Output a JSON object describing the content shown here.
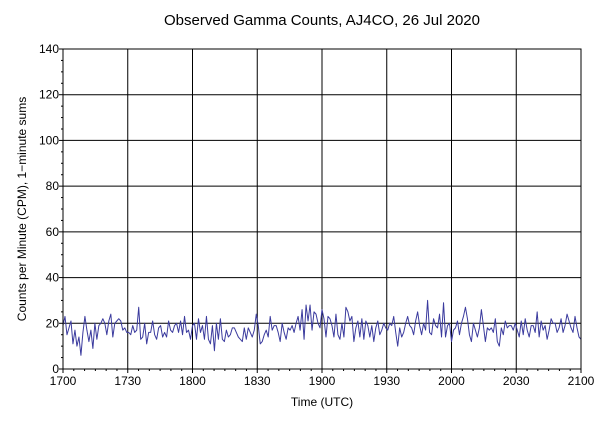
{
  "chart_data": {
    "type": "line",
    "title": "Observed Gamma Counts, AJ4CO, 26 Jul 2020",
    "xlabel": "Time (UTC)",
    "ylabel": "Counts per Minute (CPM), 1−minute sums",
    "x_ticks": [
      "1700",
      "1730",
      "1800",
      "1830",
      "1900",
      "1930",
      "2000",
      "2030",
      "2100"
    ],
    "y_ticks": [
      0,
      20,
      40,
      60,
      80,
      100,
      120,
      140
    ],
    "ylim": [
      0,
      140
    ],
    "x_start": "17:00",
    "x_end": "21:00",
    "grid": true,
    "series": [
      {
        "color": "#3b3b9e",
        "x_unit": "minutes after 17:00 UTC",
        "values": [
          19,
          23,
          15,
          18,
          21,
          11,
          17,
          10,
          14,
          6,
          16,
          23,
          17,
          12,
          17,
          9,
          20,
          13,
          19,
          20,
          22,
          20,
          15,
          21,
          24,
          14,
          20,
          21,
          22,
          21,
          17,
          18,
          16,
          16,
          15,
          19,
          16,
          17,
          27,
          13,
          14,
          20,
          11,
          16,
          16,
          21,
          15,
          13,
          18,
          19,
          14,
          16,
          14,
          21,
          17,
          16,
          19,
          20,
          16,
          21,
          15,
          23,
          16,
          17,
          13,
          19,
          20,
          13,
          22,
          16,
          19,
          13,
          23,
          13,
          11,
          19,
          8,
          20,
          13,
          22,
          13,
          12,
          17,
          14,
          15,
          18,
          18,
          16,
          14,
          13,
          12,
          18,
          13,
          18,
          16,
          14,
          17,
          24,
          19,
          11,
          12,
          15,
          17,
          14,
          23,
          17,
          19,
          19,
          16,
          12,
          20,
          16,
          13,
          18,
          17,
          19,
          16,
          20,
          23,
          17,
          26,
          13,
          28,
          21,
          28,
          17,
          25,
          24,
          20,
          18,
          26,
          22,
          14,
          23,
          22,
          19,
          14,
          24,
          15,
          13,
          20,
          14,
          27,
          25,
          21,
          23,
          12,
          18,
          21,
          14,
          22,
          13,
          21,
          19,
          14,
          19,
          12,
          18,
          21,
          15,
          17,
          20,
          18,
          17,
          20,
          19,
          23,
          16,
          10,
          18,
          14,
          16,
          20,
          23,
          19,
          18,
          15,
          21,
          25,
          19,
          15,
          20,
          17,
          30,
          16,
          15,
          22,
          19,
          18,
          24,
          14,
          29,
          14,
          19,
          20,
          12,
          17,
          18,
          21,
          15,
          20,
          23,
          27,
          22,
          15,
          12,
          20,
          17,
          14,
          18,
          26,
          19,
          12,
          18,
          17,
          18,
          16,
          22,
          12,
          10,
          18,
          15,
          21,
          18,
          19,
          19,
          17,
          20,
          17,
          14,
          21,
          15,
          22,
          17,
          14,
          19,
          19,
          16,
          25,
          14,
          21,
          17,
          19,
          13,
          17,
          22,
          20,
          20,
          16,
          18,
          22,
          16,
          19,
          24,
          21,
          18,
          16,
          23,
          18,
          14,
          13
        ]
      }
    ]
  }
}
